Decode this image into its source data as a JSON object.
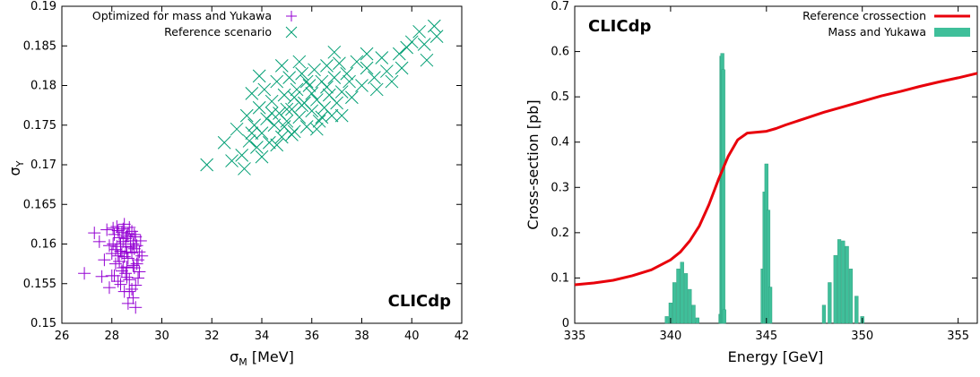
{
  "chart_data": [
    {
      "type": "scatter",
      "tag": "CLICdp",
      "xlabel_main": "σ",
      "xlabel_sub": "M",
      "xlabel_unit": " [MeV]",
      "ylabel_main": "σ",
      "ylabel_sub": "Y",
      "xlim": [
        26,
        42
      ],
      "ylim": [
        0.15,
        0.19
      ],
      "xticks": [
        26,
        28,
        30,
        32,
        34,
        36,
        38,
        40,
        42
      ],
      "yticks": [
        0.15,
        0.155,
        0.16,
        0.165,
        0.17,
        0.175,
        0.18,
        0.185,
        0.19
      ],
      "legend_position": "top-right",
      "series": [
        {
          "name": "Optimized for mass and Yukawa",
          "marker": "plus",
          "color": "#9400D3",
          "points": [
            [
              26.9,
              0.1563
            ],
            [
              27.3,
              0.1614
            ],
            [
              27.5,
              0.1603
            ],
            [
              27.6,
              0.1559
            ],
            [
              27.7,
              0.158
            ],
            [
              27.8,
              0.1618
            ],
            [
              27.9,
              0.1545
            ],
            [
              28.0,
              0.1588
            ],
            [
              28.05,
              0.16
            ],
            [
              28.1,
              0.1612
            ],
            [
              28.15,
              0.1575
            ],
            [
              28.2,
              0.1622
            ],
            [
              28.25,
              0.1553
            ],
            [
              28.3,
              0.1608
            ],
            [
              28.35,
              0.1591
            ],
            [
              28.4,
              0.1566
            ],
            [
              28.45,
              0.1619
            ],
            [
              28.5,
              0.1584
            ],
            [
              28.55,
              0.1597
            ],
            [
              28.6,
              0.1571
            ],
            [
              28.65,
              0.1613
            ],
            [
              28.7,
              0.1555
            ],
            [
              28.75,
              0.1604
            ],
            [
              28.8,
              0.1589
            ],
            [
              28.85,
              0.1573
            ],
            [
              28.9,
              0.1612
            ],
            [
              28.95,
              0.1548
            ],
            [
              29.0,
              0.1598
            ],
            [
              29.05,
              0.158
            ],
            [
              29.1,
              0.1565
            ],
            [
              29.15,
              0.1604
            ],
            [
              29.2,
              0.1585
            ],
            [
              28.2,
              0.1597
            ],
            [
              28.3,
              0.1578
            ],
            [
              28.45,
              0.1603
            ],
            [
              28.6,
              0.159
            ],
            [
              28.7,
              0.1621
            ],
            [
              28.8,
              0.1543
            ],
            [
              28.85,
              0.1532
            ],
            [
              28.65,
              0.1525
            ],
            [
              28.95,
              0.152
            ],
            [
              28.5,
              0.154
            ],
            [
              28.1,
              0.156
            ],
            [
              28.4,
              0.1615
            ],
            [
              28.55,
              0.1607
            ],
            [
              28.9,
              0.1594
            ],
            [
              29.0,
              0.1575
            ],
            [
              28.25,
              0.1585
            ],
            [
              28.75,
              0.1596
            ],
            [
              28.35,
              0.1549
            ],
            [
              28.6,
              0.1558
            ],
            [
              28.15,
              0.1593
            ],
            [
              28.05,
              0.162
            ],
            [
              28.95,
              0.1609
            ],
            [
              28.65,
              0.1582
            ],
            [
              28.45,
              0.157
            ],
            [
              28.8,
              0.1616
            ],
            [
              29.1,
              0.159
            ],
            [
              28.9,
              0.157
            ],
            [
              28.7,
              0.154
            ],
            [
              28.55,
              0.1563
            ],
            [
              28.35,
              0.16
            ],
            [
              28.25,
              0.1617
            ],
            [
              28.5,
              0.1625
            ],
            [
              28.0,
              0.156
            ],
            [
              27.9,
              0.1598
            ],
            [
              29.05,
              0.1557
            ],
            [
              28.85,
              0.16
            ],
            [
              28.4,
              0.1588
            ],
            [
              28.6,
              0.161
            ]
          ]
        },
        {
          "name": "Reference scenario",
          "marker": "cross",
          "color": "#009E73",
          "points": [
            [
              31.8,
              0.17
            ],
            [
              32.5,
              0.1728
            ],
            [
              33.0,
              0.1745
            ],
            [
              33.2,
              0.1712
            ],
            [
              33.4,
              0.1762
            ],
            [
              33.5,
              0.173
            ],
            [
              33.6,
              0.179
            ],
            [
              33.7,
              0.175
            ],
            [
              33.8,
              0.1722
            ],
            [
              33.9,
              0.1772
            ],
            [
              34.0,
              0.174
            ],
            [
              34.1,
              0.1795
            ],
            [
              34.2,
              0.1758
            ],
            [
              34.3,
              0.1728
            ],
            [
              34.4,
              0.178
            ],
            [
              34.5,
              0.175
            ],
            [
              34.6,
              0.1805
            ],
            [
              34.7,
              0.1765
            ],
            [
              34.8,
              0.1735
            ],
            [
              34.9,
              0.1788
            ],
            [
              35.0,
              0.1755
            ],
            [
              35.1,
              0.181
            ],
            [
              35.2,
              0.177
            ],
            [
              35.3,
              0.1742
            ],
            [
              35.4,
              0.1795
            ],
            [
              35.5,
              0.176
            ],
            [
              35.6,
              0.1815
            ],
            [
              35.7,
              0.1778
            ],
            [
              35.8,
              0.1748
            ],
            [
              35.9,
              0.18
            ],
            [
              36.0,
              0.1768
            ],
            [
              36.1,
              0.182
            ],
            [
              36.2,
              0.1782
            ],
            [
              36.3,
              0.1755
            ],
            [
              36.4,
              0.1805
            ],
            [
              36.5,
              0.1772
            ],
            [
              36.6,
              0.1825
            ],
            [
              36.7,
              0.1788
            ],
            [
              36.8,
              0.1762
            ],
            [
              36.9,
              0.181
            ],
            [
              37.0,
              0.1778
            ],
            [
              37.1,
              0.1828
            ],
            [
              37.2,
              0.1792
            ],
            [
              37.4,
              0.1815
            ],
            [
              37.6,
              0.1785
            ],
            [
              37.8,
              0.183
            ],
            [
              38.0,
              0.18
            ],
            [
              38.2,
              0.1822
            ],
            [
              38.5,
              0.181
            ],
            [
              38.8,
              0.1835
            ],
            [
              39.0,
              0.1818
            ],
            [
              39.5,
              0.184
            ],
            [
              39.8,
              0.1848
            ],
            [
              40.0,
              0.1855
            ],
            [
              40.3,
              0.1868
            ],
            [
              40.5,
              0.1852
            ],
            [
              40.9,
              0.1875
            ],
            [
              41.0,
              0.1862
            ],
            [
              40.6,
              0.1832
            ],
            [
              39.2,
              0.1805
            ],
            [
              34.6,
              0.1725
            ],
            [
              35.2,
              0.1738
            ],
            [
              34.0,
              0.171
            ],
            [
              33.3,
              0.1695
            ],
            [
              34.8,
              0.1825
            ],
            [
              35.5,
              0.183
            ],
            [
              33.9,
              0.1812
            ],
            [
              36.2,
              0.1745
            ],
            [
              37.2,
              0.1762
            ],
            [
              35.0,
              0.177
            ],
            [
              35.6,
              0.1775
            ],
            [
              36.0,
              0.179
            ],
            [
              34.4,
              0.1765
            ],
            [
              36.6,
              0.1798
            ],
            [
              37.5,
              0.1805
            ],
            [
              38.2,
              0.184
            ],
            [
              36.9,
              0.1842
            ],
            [
              35.8,
              0.1805
            ],
            [
              34.9,
              0.1748
            ],
            [
              33.6,
              0.174
            ],
            [
              32.8,
              0.1705
            ],
            [
              38.6,
              0.1795
            ],
            [
              39.6,
              0.1822
            ],
            [
              36.4,
              0.176
            ],
            [
              35.3,
              0.1785
            ]
          ]
        }
      ]
    },
    {
      "type": "bar+line",
      "tag": "CLICdp",
      "xlabel": "Energy [GeV]",
      "ylabel": "Cross-section [pb]",
      "xlim": [
        335,
        356
      ],
      "ylim": [
        0,
        0.7
      ],
      "xticks": [
        335,
        340,
        345,
        350,
        355
      ],
      "yticks": [
        0,
        0.1,
        0.2,
        0.3,
        0.4,
        0.5,
        0.6,
        0.7
      ],
      "legend_position": "top-right",
      "line": {
        "name": "Reference crossection",
        "color": "#E8000B",
        "x": [
          335,
          336,
          337,
          338,
          339,
          340,
          340.5,
          341,
          341.5,
          342,
          342.5,
          343,
          343.5,
          344,
          344.5,
          345,
          345.5,
          346,
          347,
          348,
          349,
          350,
          351,
          352,
          353,
          354,
          355,
          356
        ],
        "y": [
          0.085,
          0.089,
          0.095,
          0.105,
          0.118,
          0.14,
          0.157,
          0.182,
          0.215,
          0.262,
          0.318,
          0.368,
          0.405,
          0.42,
          0.422,
          0.424,
          0.43,
          0.438,
          0.452,
          0.466,
          0.478,
          0.49,
          0.502,
          0.512,
          0.523,
          0.533,
          0.542,
          0.552
        ]
      },
      "bars": {
        "name": "Mass and Yukawa",
        "color": "#3FBF9A",
        "x": [
          339.8,
          340.0,
          340.2,
          340.4,
          340.6,
          340.8,
          341.0,
          341.2,
          341.4,
          342.6,
          342.65,
          342.7,
          342.75,
          342.8,
          344.8,
          344.9,
          345.0,
          345.1,
          345.2,
          348.0,
          348.3,
          348.6,
          348.8,
          349.0,
          349.2,
          349.4,
          349.7,
          350.0
        ],
        "y": [
          0.015,
          0.045,
          0.09,
          0.12,
          0.135,
          0.11,
          0.075,
          0.04,
          0.012,
          0.02,
          0.59,
          0.596,
          0.56,
          0.03,
          0.12,
          0.29,
          0.352,
          0.25,
          0.08,
          0.04,
          0.09,
          0.15,
          0.185,
          0.182,
          0.17,
          0.12,
          0.06,
          0.015
        ]
      }
    }
  ]
}
